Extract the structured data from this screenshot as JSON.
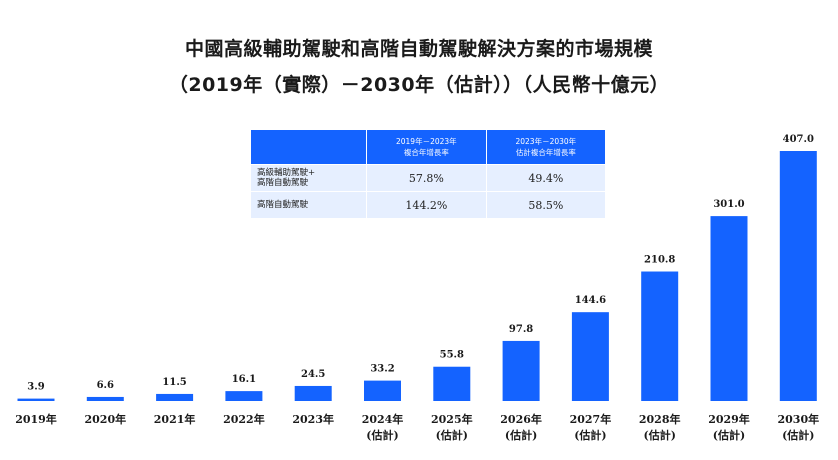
{
  "title_line1": "中國高級輔助駕駛和高階自動駕駛解決方案的市場規模",
  "title_line2": "（2019年（實際）－2030年（估計））（人民幣十億元）",
  "cagr_table": {
    "col1": "2019年－2023年\n複合年增長率",
    "col2": "2023年－2030年\n估計複合年增長率",
    "rows": [
      {
        "label": "高級輔助駕駛+\n高階自動駕駛",
        "v1": "57.8%",
        "v2": "49.4%"
      },
      {
        "label": "高階自動駕駛",
        "v1": "144.2%",
        "v2": "58.5%"
      }
    ]
  },
  "chart_data": {
    "type": "bar",
    "title": "中國高級輔助駕駛和高階自動駕駛解決方案的市場規模",
    "categories": [
      "2019年",
      "2020年",
      "2021年",
      "2022年",
      "2023年",
      "2024年\n(估計)",
      "2025年\n(估計)",
      "2026年\n(估計)",
      "2027年\n(估計)",
      "2028年\n(估計)",
      "2029年\n(估計)",
      "2030年\n(估計)"
    ],
    "values": [
      3.9,
      6.6,
      11.5,
      16.1,
      24.5,
      33.2,
      55.8,
      97.8,
      144.6,
      210.8,
      301.0,
      407.0
    ],
    "value_labels": [
      "3.9",
      "6.6",
      "11.5",
      "16.1",
      "24.5",
      "33.2",
      "55.8",
      "97.8",
      "144.6",
      "210.8",
      "301.0",
      "407.0"
    ],
    "bar_color": "#1463ff",
    "ylim": [
      0,
      407
    ],
    "grid": false
  }
}
